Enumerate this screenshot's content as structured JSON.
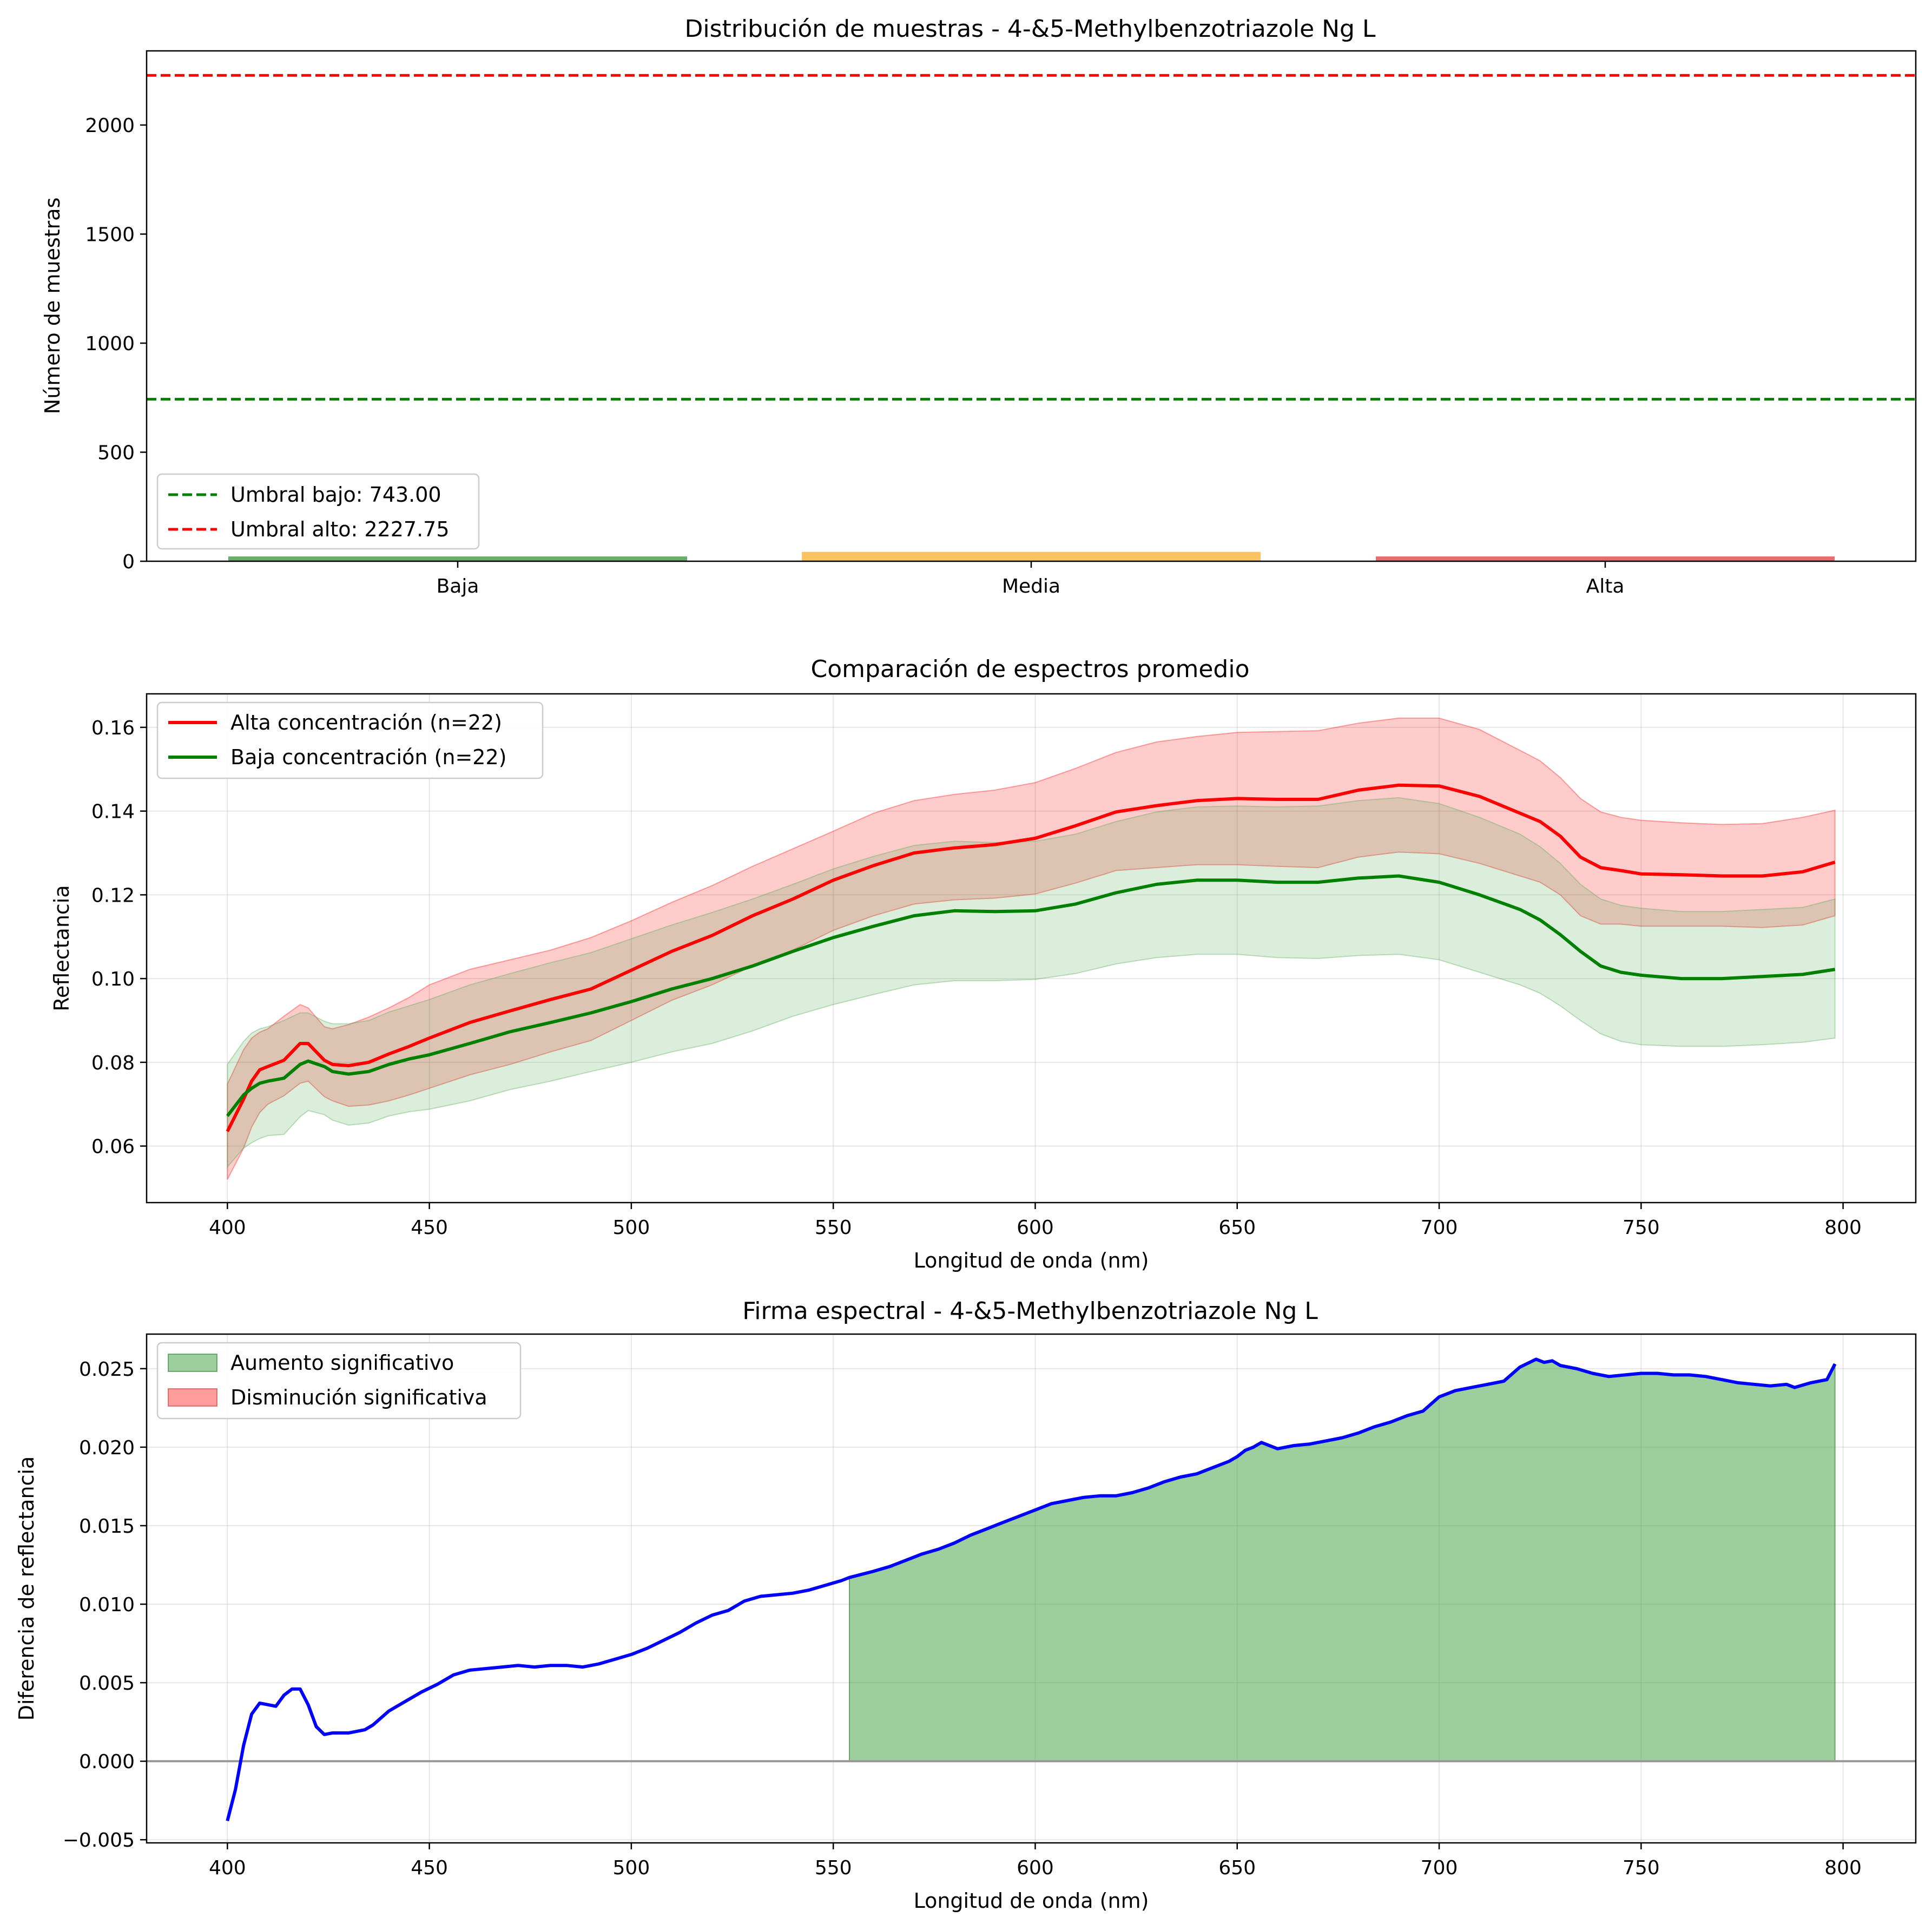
{
  "chart_data": [
    {
      "type": "bar",
      "title": "Distribución de muestras - 4-&5-Methylbenzotriazole Ng L",
      "xlabel": "",
      "ylabel": "Número de muestras",
      "ylim": [
        0,
        2340
      ],
      "yticks": [
        0,
        500,
        1000,
        1500,
        2000
      ],
      "categories": [
        "Baja",
        "Media",
        "Alta"
      ],
      "values": [
        22,
        43,
        22
      ],
      "bar_colors": [
        "#4ea04e",
        "#f9b946",
        "#e05555"
      ],
      "hlines": [
        {
          "name": "Umbral bajo: 743.00",
          "value": 743.0,
          "color": "#008000",
          "style": "dashed"
        },
        {
          "name": "Umbral alto: 2227.75",
          "value": 2227.75,
          "color": "#ff0000",
          "style": "dashed"
        }
      ],
      "legend": "lower-left",
      "grid": false
    },
    {
      "type": "line",
      "title": "Comparación de espectros promedio",
      "xlabel": "Longitud de onda (nm)",
      "ylabel": "Reflectancia",
      "xlim": [
        380,
        818
      ],
      "ylim": [
        0.0465,
        0.168
      ],
      "xticks": [
        400,
        450,
        500,
        550,
        600,
        650,
        700,
        750,
        800
      ],
      "yticks": [
        0.06,
        0.08,
        0.1,
        0.12,
        0.14,
        0.16
      ],
      "ytick_labels": [
        "0.06",
        "0.08",
        "0.10",
        "0.12",
        "0.14",
        "0.16"
      ],
      "legend": "top-left",
      "grid": true,
      "x": [
        400,
        404,
        406,
        408,
        410,
        414,
        418,
        420,
        424,
        426,
        430,
        435,
        440,
        445,
        450,
        460,
        470,
        480,
        490,
        500,
        510,
        520,
        530,
        540,
        550,
        560,
        570,
        580,
        590,
        600,
        610,
        620,
        630,
        640,
        650,
        660,
        670,
        680,
        690,
        700,
        710,
        720,
        725,
        730,
        735,
        740,
        745,
        750,
        760,
        770,
        780,
        790,
        798
      ],
      "series": [
        {
          "name": "Alta concentración (n=22)",
          "color": "#ff0000",
          "band_color": "#ff0000",
          "values": [
            0.0635,
            0.0712,
            0.0755,
            0.0782,
            0.079,
            0.0805,
            0.0845,
            0.0845,
            0.0805,
            0.0795,
            0.0792,
            0.08,
            0.082,
            0.0838,
            0.0858,
            0.0895,
            0.0923,
            0.095,
            0.0975,
            0.102,
            0.1065,
            0.1103,
            0.115,
            0.119,
            0.1235,
            0.127,
            0.13,
            0.1312,
            0.132,
            0.1335,
            0.1365,
            0.1398,
            0.1413,
            0.1425,
            0.143,
            0.1428,
            0.1428,
            0.145,
            0.1462,
            0.146,
            0.1435,
            0.1395,
            0.1375,
            0.134,
            0.129,
            0.1265,
            0.1258,
            0.125,
            0.1248,
            0.1245,
            0.1245,
            0.1255,
            0.1278
          ],
          "upper": [
            0.0748,
            0.083,
            0.0858,
            0.0872,
            0.088,
            0.091,
            0.0938,
            0.093,
            0.0885,
            0.088,
            0.089,
            0.0908,
            0.093,
            0.0955,
            0.0985,
            0.1022,
            0.1045,
            0.1068,
            0.1098,
            0.1138,
            0.1182,
            0.1222,
            0.1268,
            0.131,
            0.1352,
            0.1395,
            0.1425,
            0.144,
            0.145,
            0.1468,
            0.1502,
            0.154,
            0.1565,
            0.1578,
            0.1588,
            0.159,
            0.1592,
            0.161,
            0.1622,
            0.1622,
            0.1595,
            0.1545,
            0.152,
            0.148,
            0.143,
            0.1398,
            0.1385,
            0.1378,
            0.1372,
            0.1368,
            0.137,
            0.1385,
            0.1402
          ],
          "lower": [
            0.052,
            0.0595,
            0.0645,
            0.068,
            0.07,
            0.072,
            0.075,
            0.0755,
            0.0718,
            0.0708,
            0.0695,
            0.0698,
            0.0708,
            0.0722,
            0.0738,
            0.077,
            0.0795,
            0.0825,
            0.0852,
            0.09,
            0.0948,
            0.0985,
            0.103,
            0.1068,
            0.1115,
            0.115,
            0.1178,
            0.1188,
            0.1192,
            0.1202,
            0.1228,
            0.1258,
            0.1265,
            0.1272,
            0.1272,
            0.1268,
            0.1265,
            0.129,
            0.1302,
            0.1298,
            0.1275,
            0.1245,
            0.123,
            0.12,
            0.115,
            0.113,
            0.113,
            0.1125,
            0.1125,
            0.1125,
            0.1122,
            0.1128,
            0.115
          ]
        },
        {
          "name": "Baja concentración (n=22)",
          "color": "#008000",
          "band_color": "#4ca64c",
          "values": [
            0.0672,
            0.0722,
            0.0738,
            0.075,
            0.0755,
            0.0762,
            0.0795,
            0.0803,
            0.079,
            0.0778,
            0.0772,
            0.0778,
            0.0795,
            0.0808,
            0.0818,
            0.0845,
            0.0873,
            0.0895,
            0.0918,
            0.0945,
            0.0975,
            0.1,
            0.103,
            0.1065,
            0.1098,
            0.1125,
            0.115,
            0.1162,
            0.116,
            0.1162,
            0.1178,
            0.1205,
            0.1225,
            0.1235,
            0.1235,
            0.123,
            0.123,
            0.124,
            0.1245,
            0.123,
            0.12,
            0.1165,
            0.114,
            0.1105,
            0.1065,
            0.103,
            0.1015,
            0.1008,
            0.1,
            0.1,
            0.1005,
            0.101,
            0.1022
          ],
          "upper": [
            0.0795,
            0.085,
            0.087,
            0.088,
            0.0885,
            0.09,
            0.0918,
            0.0918,
            0.0898,
            0.0892,
            0.0892,
            0.09,
            0.092,
            0.0935,
            0.095,
            0.0985,
            0.1012,
            0.1038,
            0.1062,
            0.1095,
            0.1128,
            0.1158,
            0.119,
            0.1225,
            0.1262,
            0.1292,
            0.1318,
            0.1328,
            0.1325,
            0.1328,
            0.1345,
            0.1375,
            0.1398,
            0.141,
            0.1412,
            0.141,
            0.1412,
            0.1425,
            0.1432,
            0.1418,
            0.1385,
            0.1345,
            0.1315,
            0.1275,
            0.1225,
            0.119,
            0.1175,
            0.1168,
            0.116,
            0.116,
            0.1165,
            0.117,
            0.119
          ],
          "lower": [
            0.055,
            0.0595,
            0.0608,
            0.0618,
            0.0625,
            0.0628,
            0.067,
            0.0685,
            0.0675,
            0.0662,
            0.065,
            0.0655,
            0.0672,
            0.0682,
            0.0688,
            0.0708,
            0.0735,
            0.0755,
            0.0778,
            0.08,
            0.0825,
            0.0845,
            0.0875,
            0.091,
            0.0938,
            0.0962,
            0.0985,
            0.0995,
            0.0995,
            0.0998,
            0.1012,
            0.1035,
            0.105,
            0.1058,
            0.1058,
            0.105,
            0.1048,
            0.1055,
            0.1058,
            0.1045,
            0.1015,
            0.0985,
            0.0965,
            0.0935,
            0.09,
            0.0868,
            0.085,
            0.0842,
            0.0838,
            0.0838,
            0.0842,
            0.0848,
            0.0858
          ]
        }
      ]
    },
    {
      "type": "area",
      "title": "Firma espectral - 4-&5-Methylbenzotriazole Ng L",
      "xlabel": "Longitud de onda (nm)",
      "ylabel": "Diferencia de reflectancia",
      "xlim": [
        380,
        818
      ],
      "ylim": [
        -0.0052,
        0.0272
      ],
      "xticks": [
        400,
        450,
        500,
        550,
        600,
        650,
        700,
        750,
        800
      ],
      "yticks": [
        -0.005,
        0.0,
        0.005,
        0.01,
        0.015,
        0.02,
        0.025
      ],
      "ytick_labels": [
        "−0.005",
        "0.000",
        "0.005",
        "0.010",
        "0.015",
        "0.020",
        "0.025"
      ],
      "legend": "top-left",
      "grid": true,
      "zero_line_color": "#999999",
      "x": [
        400,
        402,
        404,
        406,
        408,
        410,
        412,
        414,
        416,
        418,
        420,
        422,
        424,
        426,
        428,
        430,
        434,
        436,
        440,
        444,
        448,
        452,
        456,
        460,
        464,
        468,
        472,
        476,
        480,
        484,
        488,
        492,
        496,
        500,
        504,
        508,
        512,
        516,
        520,
        524,
        528,
        532,
        536,
        540,
        544,
        548,
        552,
        554,
        560,
        564,
        568,
        572,
        576,
        580,
        584,
        588,
        592,
        596,
        600,
        604,
        608,
        612,
        616,
        620,
        624,
        628,
        632,
        636,
        640,
        644,
        648,
        650,
        652,
        654,
        656,
        660,
        664,
        668,
        672,
        676,
        680,
        684,
        688,
        692,
        696,
        700,
        704,
        708,
        712,
        716,
        720,
        724,
        726,
        728,
        730,
        734,
        738,
        742,
        746,
        750,
        754,
        758,
        762,
        766,
        770,
        774,
        778,
        782,
        786,
        788,
        792,
        796,
        798
      ],
      "values": [
        -0.0038,
        -0.0018,
        0.001,
        0.003,
        0.0037,
        0.0036,
        0.0035,
        0.0042,
        0.0046,
        0.0046,
        0.0036,
        0.0022,
        0.0017,
        0.0018,
        0.0018,
        0.0018,
        0.002,
        0.0023,
        0.0032,
        0.0038,
        0.0044,
        0.0049,
        0.0055,
        0.0058,
        0.0059,
        0.006,
        0.0061,
        0.006,
        0.0061,
        0.0061,
        0.006,
        0.0062,
        0.0065,
        0.0068,
        0.0072,
        0.0077,
        0.0082,
        0.0088,
        0.0093,
        0.0096,
        0.0102,
        0.0105,
        0.0106,
        0.0107,
        0.0109,
        0.0112,
        0.0115,
        0.0117,
        0.0121,
        0.0124,
        0.0128,
        0.0132,
        0.0135,
        0.0139,
        0.0144,
        0.0148,
        0.0152,
        0.0156,
        0.016,
        0.0164,
        0.0166,
        0.0168,
        0.0169,
        0.0169,
        0.0171,
        0.0174,
        0.0178,
        0.0181,
        0.0183,
        0.0187,
        0.0191,
        0.0194,
        0.0198,
        0.02,
        0.0203,
        0.0199,
        0.0201,
        0.0202,
        0.0204,
        0.0206,
        0.0209,
        0.0213,
        0.0216,
        0.022,
        0.0223,
        0.0232,
        0.0236,
        0.0238,
        0.024,
        0.0242,
        0.0251,
        0.0256,
        0.0254,
        0.0255,
        0.0252,
        0.025,
        0.0247,
        0.0245,
        0.0246,
        0.0247,
        0.0247,
        0.0246,
        0.0246,
        0.0245,
        0.0243,
        0.0241,
        0.024,
        0.0239,
        0.024,
        0.0238,
        0.0241,
        0.0243,
        0.0253
      ],
      "legend_entries": [
        {
          "name": "Aumento significativo",
          "color": "#4ca64c"
        },
        {
          "name": "Disminución significativa",
          "color": "#ff4c4c"
        }
      ],
      "significant_increase_range": [
        554,
        798
      ]
    }
  ]
}
